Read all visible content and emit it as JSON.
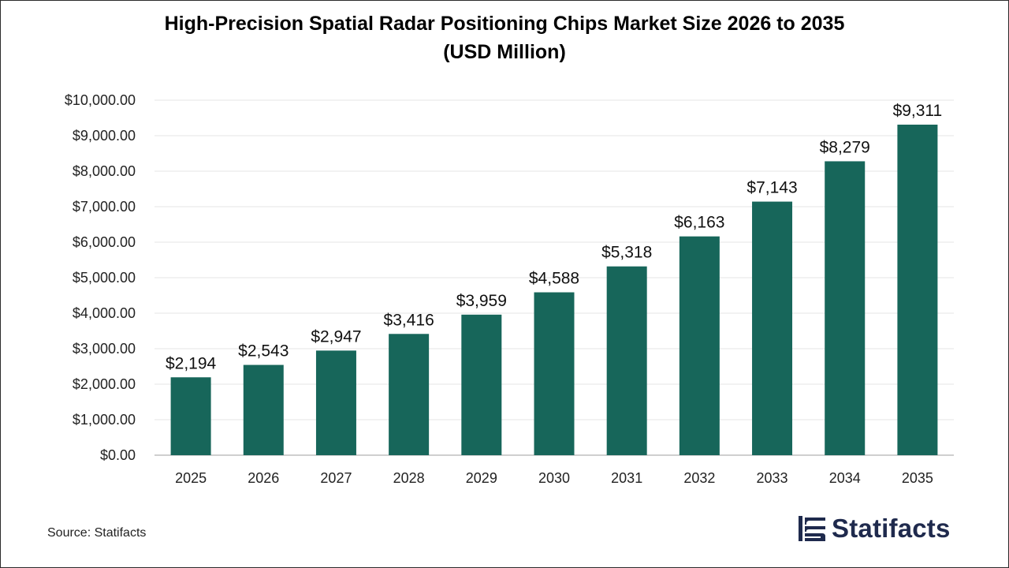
{
  "chart_data": {
    "type": "bar",
    "title": "High-Precision Spatial Radar Positioning Chips Market Size 2026 to 2035",
    "subtitle": "(USD Million)",
    "categories": [
      "2025",
      "2026",
      "2027",
      "2028",
      "2029",
      "2030",
      "2031",
      "2032",
      "2033",
      "2034",
      "2035"
    ],
    "values": [
      2194,
      2543,
      2947,
      3416,
      3959,
      4588,
      5318,
      6163,
      7143,
      8279,
      9311
    ],
    "value_labels": [
      "$2,194",
      "$2,543",
      "$2,947",
      "$3,416",
      "$3,959",
      "$4,588",
      "$5,318",
      "$6,163",
      "$7,143",
      "$8,279",
      "$9,311"
    ],
    "y_ticks": [
      0,
      1000,
      2000,
      3000,
      4000,
      5000,
      6000,
      7000,
      8000,
      9000,
      10000
    ],
    "y_tick_labels": [
      "$0.00",
      "$1,000.00",
      "$2,000.00",
      "$3,000.00",
      "$4,000.00",
      "$5,000.00",
      "$6,000.00",
      "$7,000.00",
      "$8,000.00",
      "$9,000.00",
      "$10,000.00"
    ],
    "ylim": [
      0,
      10000
    ],
    "xlabel": "",
    "ylabel": "",
    "grid": true,
    "bar_color": "#17665a"
  },
  "source": "Source: Statifacts",
  "brand": {
    "name": "Statifacts",
    "color": "#1f2a4d",
    "icon": "statifacts-logo-icon"
  }
}
